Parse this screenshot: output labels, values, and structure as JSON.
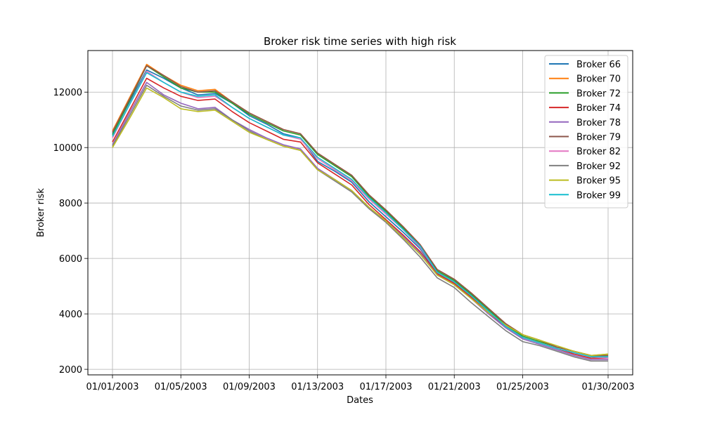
{
  "chart_data": {
    "type": "line",
    "title": "Broker risk time series with high risk",
    "xlabel": "Dates",
    "ylabel": "Broker risk",
    "x": [
      "01/01/2003",
      "01/02/2003",
      "01/03/2003",
      "01/04/2003",
      "01/05/2003",
      "01/06/2003",
      "01/07/2003",
      "01/08/2003",
      "01/09/2003",
      "01/10/2003",
      "01/11/2003",
      "01/12/2003",
      "01/13/2003",
      "01/14/2003",
      "01/15/2003",
      "01/16/2003",
      "01/17/2003",
      "01/18/2003",
      "01/19/2003",
      "01/20/2003",
      "01/21/2003",
      "01/22/2003",
      "01/23/2003",
      "01/24/2003",
      "01/25/2003",
      "01/26/2003",
      "01/27/2003",
      "01/28/2003",
      "01/29/2003",
      "01/30/2003"
    ],
    "x_ticks": [
      "01/01/2003",
      "01/05/2003",
      "01/09/2003",
      "01/13/2003",
      "01/17/2003",
      "01/21/2003",
      "01/25/2003",
      "01/30/2003"
    ],
    "ylim": [
      1800,
      13500
    ],
    "y_ticks": [
      2000,
      4000,
      6000,
      8000,
      10000,
      12000
    ],
    "grid": true,
    "legend_position": "top-right",
    "series": [
      {
        "name": "Broker 66",
        "color": "#1f77b4",
        "values": [
          10500,
          11650,
          12800,
          12500,
          12150,
          11900,
          11950,
          11600,
          11150,
          10850,
          10500,
          10350,
          9500,
          9150,
          8750,
          8050,
          7500,
          6950,
          6350,
          5450,
          5100,
          4600,
          4050,
          3550,
          3150,
          2950,
          2750,
          2550,
          2400,
          2450
        ]
      },
      {
        "name": "Broker 70",
        "color": "#ff7f0e",
        "values": [
          10600,
          11800,
          13000,
          12600,
          12250,
          12050,
          12100,
          11650,
          11250,
          10950,
          10650,
          10500,
          9800,
          9400,
          9000,
          8300,
          7750,
          7150,
          6500,
          5600,
          5250,
          4750,
          4200,
          3650,
          3250,
          3050,
          2800,
          2650,
          2500,
          2550
        ]
      },
      {
        "name": "Broker 72",
        "color": "#2ca02c",
        "values": [
          10450,
          11700,
          12950,
          12550,
          12150,
          12000,
          12000,
          11600,
          11200,
          10900,
          10600,
          10450,
          9750,
          9350,
          8950,
          8250,
          7700,
          7100,
          6450,
          5550,
          5200,
          4700,
          4150,
          3600,
          3200,
          3000,
          2800,
          2650,
          2500,
          2500
        ]
      },
      {
        "name": "Broker 74",
        "color": "#d62728",
        "values": [
          10200,
          11350,
          12500,
          12150,
          11850,
          11700,
          11750,
          11300,
          10900,
          10600,
          10300,
          10200,
          9450,
          9050,
          8650,
          7950,
          7400,
          6850,
          6250,
          5450,
          5100,
          4600,
          4050,
          3550,
          3150,
          2950,
          2750,
          2550,
          2400,
          2400
        ]
      },
      {
        "name": "Broker 78",
        "color": "#9467bd",
        "values": [
          10100,
          11250,
          12350,
          11900,
          11600,
          11400,
          11450,
          11000,
          10650,
          10350,
          10100,
          9950,
          9250,
          8850,
          8450,
          7850,
          7350,
          6800,
          6200,
          5400,
          5050,
          4550,
          4000,
          3500,
          3100,
          2900,
          2700,
          2500,
          2350,
          2350
        ]
      },
      {
        "name": "Broker 79",
        "color": "#8c564b",
        "values": [
          10550,
          11750,
          12950,
          12600,
          12200,
          12000,
          12050,
          11650,
          11250,
          10950,
          10650,
          10500,
          9800,
          9400,
          9000,
          8300,
          7750,
          7150,
          6500,
          5600,
          5250,
          4750,
          4200,
          3650,
          3250,
          3050,
          2800,
          2650,
          2500,
          2500
        ]
      },
      {
        "name": "Broker 82",
        "color": "#e377c2",
        "values": [
          10350,
          11550,
          12750,
          12350,
          12000,
          11800,
          11850,
          11450,
          11050,
          10750,
          10450,
          10300,
          9600,
          9200,
          8800,
          8150,
          7600,
          7050,
          6400,
          5500,
          5150,
          4650,
          4100,
          3550,
          3150,
          2950,
          2750,
          2600,
          2450,
          2400
        ]
      },
      {
        "name": "Broker 92",
        "color": "#7f7f7f",
        "values": [
          10050,
          11150,
          12250,
          11850,
          11500,
          11350,
          11400,
          11000,
          10600,
          10300,
          10050,
          9900,
          9200,
          8800,
          8400,
          7800,
          7300,
          6700,
          6050,
          5300,
          4950,
          4400,
          3900,
          3400,
          3000,
          2850,
          2650,
          2450,
          2300,
          2300
        ]
      },
      {
        "name": "Broker 95",
        "color": "#bcbd22",
        "values": [
          10000,
          11050,
          12150,
          11800,
          11400,
          11300,
          11350,
          10950,
          10550,
          10300,
          10050,
          9900,
          9200,
          8850,
          8450,
          7850,
          7350,
          6750,
          6150,
          5400,
          5050,
          4550,
          4050,
          3600,
          3250,
          3050,
          2850,
          2650,
          2500,
          2550
        ]
      },
      {
        "name": "Broker 99",
        "color": "#17becf",
        "values": [
          10400,
          11550,
          12700,
          12350,
          12000,
          11850,
          11900,
          11450,
          11050,
          10750,
          10450,
          10350,
          9650,
          9250,
          8850,
          8200,
          7650,
          7050,
          6450,
          5500,
          5150,
          4650,
          4100,
          3550,
          3150,
          2950,
          2750,
          2600,
          2450,
          2450
        ]
      }
    ]
  }
}
